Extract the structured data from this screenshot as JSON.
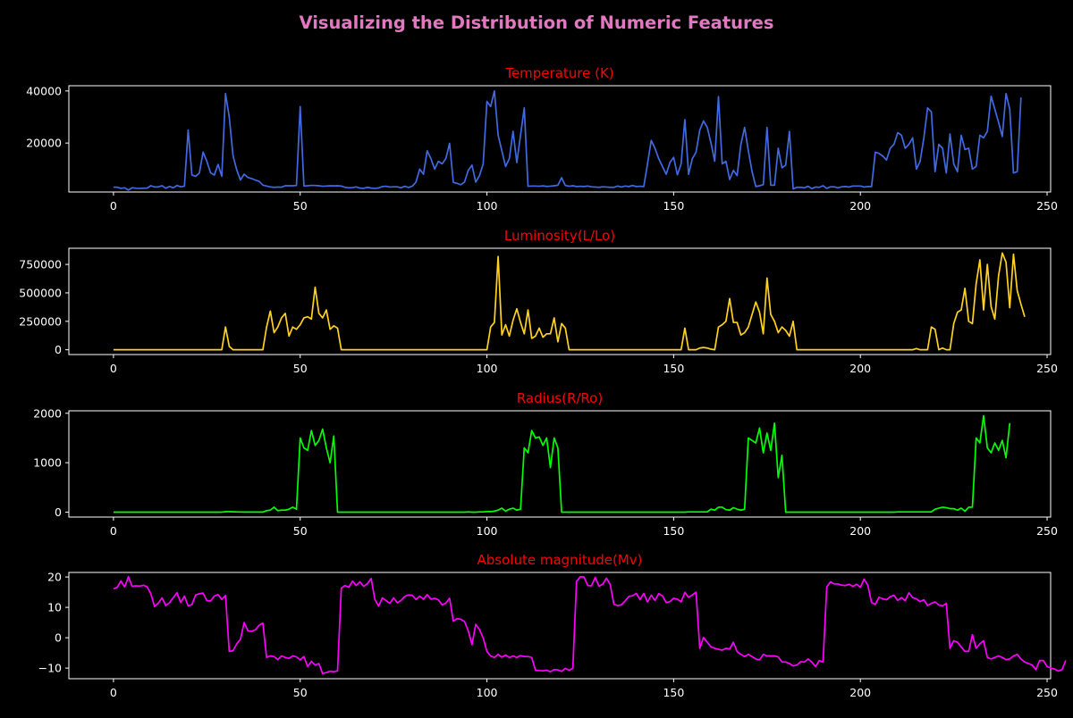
{
  "page": {
    "title": "Visualizing the Distribution of Numeric Features",
    "title_color": "#e377c2",
    "background": "#000000",
    "subplot_title_color": "#ff0000",
    "axis_color": "#ffffff"
  },
  "chart_data": [
    {
      "type": "line",
      "title": "Temperature (K)",
      "color": "#4169e1",
      "xlim": [
        -11.95,
        250.95
      ],
      "ylim": [
        1200,
        42000
      ],
      "xticks": [
        0,
        50,
        100,
        150,
        200,
        250
      ],
      "yticks": [
        20000,
        40000
      ],
      "x_start": 0,
      "values": [
        3068,
        3042,
        2600,
        2800,
        1939,
        2840,
        2637,
        2600,
        2650,
        2700,
        3600,
        3129,
        3134,
        3628,
        2650,
        3340,
        2799,
        3692,
        3192,
        3441,
        25000,
        7740,
        7220,
        8500,
        16500,
        12990,
        8570,
        7700,
        11790,
        7230,
        39000,
        30000,
        15276,
        9700,
        5800,
        8052,
        6757,
        6380,
        5752,
        5300,
        3826,
        3500,
        3150,
        3000,
        3100,
        3050,
        3600,
        3600,
        3600,
        3700,
        34000,
        3500,
        3600,
        3750,
        3700,
        3600,
        3400,
        3500,
        3600,
        3550,
        3600,
        3500,
        3000,
        2800,
        2900,
        3150,
        2700,
        2600,
        3000,
        2700,
        2600,
        2750,
        3300,
        3400,
        3100,
        3200,
        3200,
        2800,
        3400,
        2950,
        3400,
        5000,
        10000,
        8000,
        17000,
        14000,
        10000,
        13000,
        12000,
        14000,
        19900,
        4900,
        4500,
        4000,
        5000,
        9500,
        11500,
        5000,
        7500,
        12000,
        36000,
        34000,
        40000,
        23000,
        17000,
        11000,
        14000,
        24500,
        12500,
        23000,
        33500,
        3400,
        3500,
        3500,
        3400,
        3550,
        3350,
        3450,
        3600,
        3800,
        6700,
        3700,
        3400,
        3600,
        3300,
        3400,
        3300,
        3500,
        3200,
        3100,
        3000,
        3200,
        3100,
        3000,
        3000,
        3500,
        3100,
        3500,
        3300,
        3700,
        3300,
        3400,
        3300,
        12000,
        21000,
        18000,
        14000,
        11000,
        8000,
        12500,
        14500,
        7800,
        12000,
        29000,
        8000,
        14000,
        16500,
        25000,
        28500,
        26000,
        20000,
        13000,
        37800,
        12000,
        13000,
        6000,
        9500,
        7500,
        19500,
        26000,
        17000,
        9000,
        3300,
        3600,
        4000,
        26000,
        3800,
        3800,
        18000,
        10500,
        11500,
        24500,
        2400,
        3000,
        3000,
        2800,
        3400,
        2500,
        3100,
        3000,
        3600,
        2600,
        3200,
        3200,
        2800,
        3200,
        3300,
        3100,
        3500,
        3500,
        3500,
        3100,
        3300,
        3300,
        16500,
        16000,
        15000,
        13500,
        18000,
        19500,
        24000,
        23000,
        18000,
        19500,
        22000,
        10000,
        13000,
        22000,
        33500,
        32000,
        9000,
        19500,
        18000,
        8500,
        23500,
        12000,
        9000,
        23000,
        17500,
        18000,
        10000,
        11000,
        23000,
        22000,
        24500,
        38000,
        33000,
        28000,
        22500,
        39000,
        33000,
        8500,
        9000,
        37500
      ]
    },
    {
      "type": "line",
      "title": "Luminosity(L/Lo)",
      "color": "#ffd21f",
      "xlim": [
        -11.95,
        250.95
      ],
      "ylim": [
        -42000,
        892000
      ],
      "xticks": [
        0,
        50,
        100,
        150,
        200,
        250
      ],
      "yticks": [
        0,
        250000,
        500000,
        750000
      ],
      "x_start": 0,
      "values": [
        0,
        0,
        0,
        0,
        0,
        0,
        0,
        0,
        0,
        0,
        0,
        0,
        0,
        0,
        0,
        0,
        0,
        0,
        0,
        0,
        0,
        0,
        0,
        0,
        0,
        0,
        0,
        0,
        0,
        0,
        200000,
        30000,
        0,
        0,
        0,
        0,
        0,
        0,
        0,
        0,
        0,
        200000,
        340000,
        150000,
        200000,
        280000,
        320000,
        120000,
        200000,
        180000,
        220000,
        280000,
        290000,
        270000,
        550000,
        320000,
        280000,
        350000,
        180000,
        210000,
        190000,
        0,
        0,
        0,
        0,
        0,
        0,
        0,
        0,
        0,
        0,
        0,
        0,
        0,
        0,
        0,
        0,
        0,
        0,
        0,
        0,
        0,
        0,
        0,
        0,
        0,
        0,
        0,
        0,
        0,
        0,
        0,
        0,
        0,
        0,
        0,
        0,
        0,
        0,
        0,
        0,
        200000,
        240000,
        820000,
        130000,
        220000,
        120000,
        260000,
        360000,
        240000,
        140000,
        350000,
        100000,
        120000,
        190000,
        110000,
        140000,
        140000,
        280000,
        70000,
        230000,
        190000,
        0,
        0,
        0,
        0,
        0,
        0,
        0,
        0,
        0,
        0,
        0,
        0,
        0,
        0,
        0,
        0,
        0,
        0,
        0,
        0,
        0,
        0,
        0,
        0,
        0,
        0,
        0,
        0,
        0,
        0,
        0,
        190000,
        0,
        0,
        0,
        15000,
        20000,
        15000,
        5000,
        0,
        200000,
        220000,
        250000,
        450000,
        240000,
        240000,
        130000,
        150000,
        200000,
        310000,
        420000,
        330000,
        140000,
        630000,
        310000,
        250000,
        150000,
        200000,
        170000,
        120000,
        250000,
        0,
        0,
        0,
        0,
        0,
        0,
        0,
        0,
        0,
        0,
        0,
        0,
        0,
        0,
        0,
        0,
        0,
        0,
        0,
        0,
        0,
        0,
        0,
        0,
        0,
        0,
        0,
        0,
        0,
        0,
        0,
        0,
        10000,
        0,
        0,
        0,
        200000,
        180000,
        0,
        15000,
        0,
        0,
        230000,
        330000,
        350000,
        540000,
        250000,
        230000,
        580000,
        790000,
        350000,
        750000,
        380000,
        270000,
        650000,
        850000,
        770000,
        370000,
        840000,
        520000,
        400000,
        290000
      ]
    },
    {
      "type": "line",
      "title": "Radius(R/Ro)",
      "color": "#00ff00",
      "xlim": [
        -11.95,
        250.95
      ],
      "ylim": [
        -100,
        2050
      ],
      "xticks": [
        0,
        50,
        100,
        150,
        200,
        250
      ],
      "yticks": [
        0,
        1000,
        2000
      ],
      "x_start": 0,
      "values": [
        0,
        0,
        0,
        0,
        0,
        0,
        0,
        0,
        0,
        0,
        0,
        0,
        0,
        0,
        0,
        0,
        0,
        0,
        0,
        0,
        0,
        0,
        0,
        0,
        0,
        0,
        0,
        0,
        0,
        0,
        10,
        8,
        6,
        5,
        3,
        2,
        2,
        1,
        1,
        1,
        1,
        30,
        40,
        100,
        30,
        40,
        40,
        60,
        100,
        60,
        1500,
        1300,
        1250,
        1650,
        1350,
        1450,
        1680,
        1300,
        1000,
        1540,
        0,
        0,
        0,
        0,
        0,
        0,
        0,
        0,
        0,
        0,
        0,
        0,
        0,
        0,
        0,
        0,
        0,
        0,
        0,
        0,
        0,
        0,
        0,
        0,
        0,
        0,
        0,
        0,
        0,
        0,
        0,
        0,
        0,
        0,
        0,
        5,
        0,
        0,
        5,
        5,
        10,
        10,
        20,
        40,
        80,
        20,
        60,
        80,
        40,
        60,
        1300,
        1200,
        1650,
        1500,
        1520,
        1350,
        1500,
        900,
        1500,
        1300,
        0,
        0,
        0,
        0,
        0,
        0,
        0,
        0,
        0,
        0,
        0,
        0,
        0,
        0,
        0,
        0,
        0,
        0,
        0,
        0,
        0,
        0,
        0,
        0,
        0,
        0,
        0,
        0,
        0,
        0,
        0,
        0,
        0,
        0,
        5,
        5,
        5,
        5,
        5,
        5,
        60,
        40,
        100,
        100,
        50,
        40,
        90,
        60,
        40,
        60,
        1500,
        1450,
        1400,
        1700,
        1200,
        1600,
        1250,
        1800,
        700,
        1150,
        0,
        0,
        0,
        0,
        0,
        0,
        0,
        0,
        0,
        0,
        0,
        0,
        0,
        0,
        0,
        0,
        0,
        0,
        0,
        0,
        0,
        0,
        0,
        0,
        0,
        0,
        0,
        0,
        0,
        0,
        5,
        5,
        5,
        5,
        5,
        5,
        5,
        5,
        5,
        5,
        60,
        80,
        100,
        90,
        70,
        70,
        40,
        80,
        20,
        100,
        100,
        1500,
        1400,
        1950,
        1300,
        1200,
        1400,
        1250,
        1450,
        1100,
        1800
      ]
    },
    {
      "type": "line",
      "title": "Absolute magnitude(Mv)",
      "color": "#ff00ff",
      "xlim": [
        -11.95,
        250.95
      ],
      "ylim": [
        -13.5,
        21.5
      ],
      "xticks": [
        0,
        50,
        100,
        150,
        200,
        250
      ],
      "yticks": [
        -10,
        0,
        10,
        20
      ],
      "x_start": 0,
      "values": [
        16.1,
        16.6,
        18.7,
        16.7,
        20.1,
        16.9,
        17.1,
        17.0,
        17.3,
        16.8,
        14.5,
        10.3,
        11.4,
        13.1,
        10.6,
        11.5,
        13.2,
        14.8,
        11.6,
        13.7,
        10.5,
        10.9,
        14.1,
        14.5,
        14.7,
        12.2,
        12.1,
        13.7,
        14.2,
        12.6,
        13.9,
        -4.5,
        -4.3,
        -2.0,
        -0.5,
        5.0,
        2.3,
        2.1,
        2.6,
        4.1,
        4.8,
        -6.5,
        -6.0,
        -6.2,
        -7.2,
        -6.0,
        -6.5,
        -6.8,
        -6.0,
        -6.3,
        -7.3,
        -6.2,
        -9.5,
        -7.8,
        -9.0,
        -8.5,
        -11.8,
        -11.5,
        -11.0,
        -11.2,
        -10.9,
        16.3,
        17.2,
        16.6,
        18.6,
        17.2,
        18.4,
        16.9,
        17.8,
        19.5,
        12.6,
        10.4,
        13.1,
        12.2,
        11.3,
        13.1,
        11.5,
        12.3,
        13.6,
        14.1,
        14.0,
        12.6,
        13.7,
        12.7,
        14.2,
        12.7,
        13.0,
        12.5,
        10.8,
        11.4,
        13.0,
        5.4,
        6.3,
        6.1,
        5.3,
        2.3,
        -2.3,
        4.4,
        2.7,
        -0.1,
        -4.5,
        -6.0,
        -6.5,
        -5.5,
        -6.4,
        -5.7,
        -6.5,
        -6.0,
        -6.5,
        -5.9,
        -6.2,
        -6.2,
        -6.5,
        -10.7,
        -10.8,
        -10.9,
        -10.7,
        -11.2,
        -10.5,
        -10.6,
        -11.1,
        -10.1,
        -10.7,
        -10.1,
        18.5,
        20.1,
        20.0,
        17.2,
        17.1,
        19.9,
        17.0,
        17.6,
        19.6,
        17.6,
        11.0,
        10.6,
        10.8,
        12.1,
        13.6,
        13.8,
        14.6,
        12.5,
        14.6,
        11.8,
        14.0,
        12.3,
        14.5,
        13.8,
        11.6,
        11.9,
        13.0,
        12.7,
        11.8,
        14.9,
        13.3,
        14.1,
        15.0,
        -3.5,
        0.1,
        -1.5,
        -3.0,
        -3.5,
        -3.8,
        -4.1,
        -3.5,
        -3.7,
        -1.5,
        -4.6,
        -5.5,
        -6.2,
        -5.5,
        -6.2,
        -7.0,
        -7.3,
        -5.5,
        -6.0,
        -6.0,
        -6.0,
        -6.3,
        -8.0,
        -8.0,
        -8.5,
        -9.3,
        -9.0,
        -7.9,
        -8.0,
        -7.0,
        -8.0,
        -9.5,
        -7.5,
        -8.0,
        16.7,
        18.4,
        17.7,
        17.7,
        17.3,
        17.2,
        17.6,
        16.9,
        17.6,
        16.6,
        19.3,
        17.3,
        11.6,
        11.0,
        13.3,
        12.8,
        12.5,
        13.5,
        14.0,
        12.3,
        13.2,
        12.2,
        14.8,
        13.2,
        12.8,
        11.9,
        12.5,
        10.6,
        11.3,
        11.8,
        10.8,
        10.5,
        11.3,
        -3.5,
        -1.0,
        -1.5,
        -3.0,
        -4.5,
        -4.5,
        1.0,
        -3.5,
        -2.0,
        -1.0,
        -6.5,
        -7.0,
        -6.5,
        -6.0,
        -6.5,
        -7.2,
        -7.0,
        -6.0,
        -5.5,
        -7.0,
        -8.0,
        -8.5,
        -9.0,
        -10.5,
        -7.5,
        -7.5,
        -9.5,
        -10.0,
        -10.3,
        -11.0,
        -10.5,
        -7.5
      ]
    }
  ]
}
